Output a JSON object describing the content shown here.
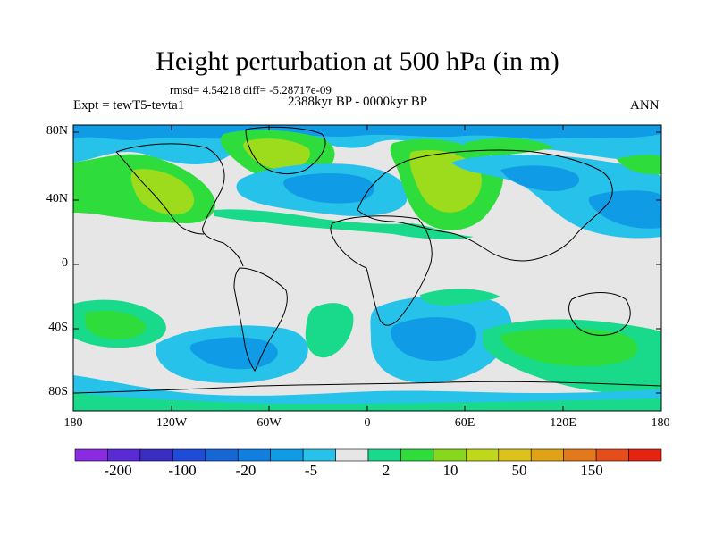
{
  "title": "Height perturbation at 500 hPa (in m)",
  "stats": "rmsd= 4.54218 diff= -5.28717e-09",
  "period": "2388kyr BP - 0000kyr BP",
  "experiment": "Expt = tewT5-tevta1",
  "season": "ANN",
  "map": {
    "lat_ticks": [
      "80N",
      "40N",
      "0",
      "40S",
      "80S"
    ],
    "lon_ticks": [
      "180",
      "120W",
      "60W",
      "0",
      "60E",
      "120E",
      "180"
    ],
    "field_colors": {
      "neutral": "#e6e6e6",
      "neg5_2": "#27c2ea",
      "neg20_5": "#0f9be6",
      "neg100_20": "#1766d6",
      "pos2_5": "#19d98a",
      "pos5_10": "#2edc3c",
      "pos10_20": "#9ddc1c",
      "coast": "#000000"
    }
  },
  "colorbar": {
    "colors": [
      "#8a2be2",
      "#5a2ad6",
      "#3a2ec2",
      "#1e4bd8",
      "#1766d6",
      "#0f80e0",
      "#0f9be6",
      "#27c2ea",
      "#e6e6e6",
      "#19d98a",
      "#2edc3c",
      "#86d81a",
      "#bfd81a",
      "#dcc21a",
      "#e0a316",
      "#e3791a",
      "#e54e1a",
      "#e42410"
    ],
    "labels": [
      "-200",
      "-100",
      "-20",
      "-5",
      "2",
      "10",
      "50",
      "150"
    ]
  }
}
